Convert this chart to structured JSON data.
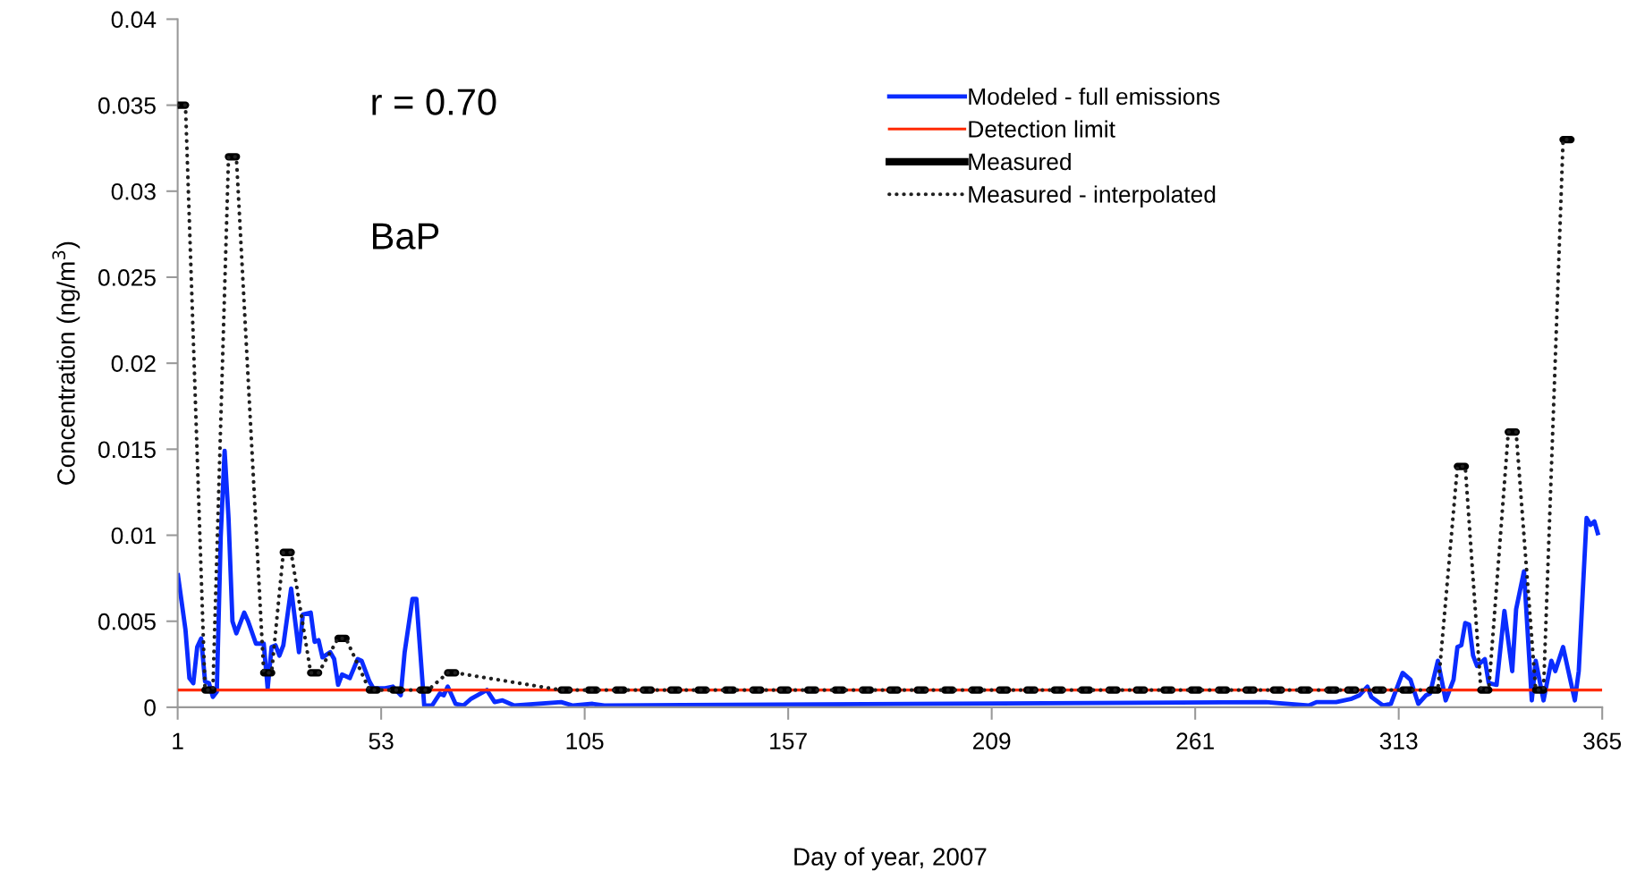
{
  "chart_data": {
    "type": "line",
    "xlabel": "Day of year, 2007",
    "ylabel": "Concentration (ng/m$^{3}$)",
    "xlim": [
      1,
      365
    ],
    "xticks": [
      1,
      53,
      105,
      157,
      209,
      261,
      313,
      365
    ],
    "ylim": [
      0,
      0.04
    ],
    "yticks": [
      0,
      0.005,
      0.01,
      0.015,
      0.02,
      0.025,
      0.03,
      0.035,
      0.04
    ],
    "grid": false,
    "legend": "top right",
    "annotations": [
      "r = 0.70",
      "BaP"
    ],
    "series": [
      {
        "name": "Modeled - full emissions",
        "color": "#0a2cff",
        "line_style": "solid",
        "x": [
          1,
          3,
          4,
          5,
          6,
          7,
          8,
          9,
          10,
          11,
          12,
          13,
          14,
          15,
          16,
          18,
          19,
          21,
          23,
          24,
          25,
          26,
          27,
          28,
          30,
          32,
          33,
          35,
          36,
          37,
          38,
          40,
          41,
          42,
          43,
          45,
          47,
          48,
          50,
          51,
          54,
          56,
          58,
          59,
          61,
          62,
          64,
          66,
          68,
          69,
          70,
          72,
          74,
          76,
          80,
          82,
          84,
          87,
          99,
          102,
          107,
          110,
          279,
          290,
          292,
          297,
          301,
          303,
          305,
          306,
          309,
          311,
          314,
          316,
          318,
          320,
          321,
          323,
          325,
          327,
          328,
          329,
          330,
          331,
          332,
          333,
          335,
          336,
          338,
          340,
          342,
          343,
          345,
          347,
          348,
          350,
          352,
          353,
          355,
          358,
          359,
          360,
          361,
          362,
          363,
          364
        ],
        "values": [
          0.0078,
          0.0045,
          0.0017,
          0.0014,
          0.0035,
          0.004,
          0.0015,
          0.0014,
          0.0006,
          0.0009,
          0.0099,
          0.0149,
          0.011,
          0.005,
          0.0043,
          0.0055,
          0.005,
          0.0037,
          0.0037,
          0.0011,
          0.0035,
          0.0036,
          0.003,
          0.0036,
          0.0069,
          0.0032,
          0.0054,
          0.0055,
          0.0038,
          0.0039,
          0.0029,
          0.0032,
          0.0028,
          0.0013,
          0.0019,
          0.0017,
          0.0028,
          0.0027,
          0.0015,
          0.0011,
          0.0011,
          0.0012,
          0.0007,
          0.0032,
          0.0063,
          0.0063,
          0.0001,
          0.0001,
          0.0008,
          0.0007,
          0.0012,
          0.0002,
          0.0001,
          0.0005,
          0.001,
          0.0003,
          0.0004,
          0.0001,
          0.0003,
          0.0001,
          0.0002,
          0.0001,
          0.0003,
          0.0001,
          0.0003,
          0.0003,
          0.0005,
          0.0007,
          0.0012,
          0.0006,
          0.0001,
          0.0002,
          0.002,
          0.0016,
          0.0002,
          0.0007,
          0.0008,
          0.0027,
          0.0004,
          0.0016,
          0.0035,
          0.0036,
          0.0049,
          0.0048,
          0.003,
          0.0024,
          0.0028,
          0.0014,
          0.0013,
          0.0056,
          0.0021,
          0.0057,
          0.0079,
          0.0004,
          0.0027,
          0.0004,
          0.0027,
          0.0021,
          0.0035,
          0.0004,
          0.0021,
          0.0066,
          0.011,
          0.0106,
          0.0108,
          0.01
        ]
      },
      {
        "name": "Detection limit",
        "color": "#ff2a00",
        "line_style": "solid",
        "x": [
          1,
          365
        ],
        "values": [
          0.001,
          0.001
        ]
      },
      {
        "name": "Measured",
        "color": "#000000",
        "line_style": "solid",
        "x": [
          1,
          3,
          4,
          8,
          10,
          11,
          14,
          16,
          17,
          23,
          25,
          26,
          28,
          30,
          31,
          35,
          37,
          38,
          42,
          44,
          45,
          50,
          52,
          53,
          56,
          58,
          59,
          63,
          65,
          66,
          70,
          72,
          73,
          99,
          101,
          102,
          106,
          108,
          109,
          113,
          115,
          116,
          120,
          122,
          123,
          127,
          129,
          130,
          134,
          136,
          137,
          141,
          143,
          144,
          148,
          150,
          151,
          155,
          157,
          158,
          162,
          164,
          165,
          169,
          171,
          172,
          176,
          178,
          179,
          183,
          185,
          186,
          190,
          192,
          193,
          197,
          199,
          200,
          204,
          206,
          207,
          211,
          213,
          214,
          218,
          220,
          221,
          225,
          227,
          228,
          232,
          234,
          235,
          239,
          241,
          242,
          246,
          248,
          249,
          253,
          255,
          256,
          260,
          262,
          263,
          267,
          269,
          270,
          274,
          276,
          277,
          281,
          283,
          284,
          288,
          290,
          291,
          295,
          297,
          298,
          300,
          302,
          303,
          307,
          309,
          310,
          314,
          316,
          317,
          321,
          323,
          324,
          328,
          330,
          331,
          334,
          336,
          337,
          341,
          343,
          344,
          348,
          350,
          351,
          355,
          357
        ],
        "values": [
          0.035,
          0.035,
          null,
          0.001,
          0.001,
          null,
          0.032,
          0.032,
          null,
          0.002,
          0.002,
          null,
          0.009,
          0.009,
          null,
          0.002,
          0.002,
          null,
          0.004,
          0.004,
          null,
          0.001,
          0.001,
          null,
          0.001,
          0.001,
          null,
          0.001,
          0.001,
          null,
          0.002,
          0.002,
          null,
          0.001,
          0.001,
          null,
          0.001,
          0.001,
          null,
          0.001,
          0.001,
          null,
          0.001,
          0.001,
          null,
          0.001,
          0.001,
          null,
          0.001,
          0.001,
          null,
          0.001,
          0.001,
          null,
          0.001,
          0.001,
          null,
          0.001,
          0.001,
          null,
          0.001,
          0.001,
          null,
          0.001,
          0.001,
          null,
          0.001,
          0.001,
          null,
          0.001,
          0.001,
          null,
          0.001,
          0.001,
          null,
          0.001,
          0.001,
          null,
          0.001,
          0.001,
          null,
          0.001,
          0.001,
          null,
          0.001,
          0.001,
          null,
          0.001,
          0.001,
          null,
          0.001,
          0.001,
          null,
          0.001,
          0.001,
          null,
          0.001,
          0.001,
          null,
          0.001,
          0.001,
          null,
          0.001,
          0.001,
          null,
          0.001,
          0.001,
          null,
          0.001,
          0.001,
          null,
          0.001,
          0.001,
          null,
          0.001,
          0.001,
          null,
          0.001,
          0.001,
          null,
          0.001,
          0.001,
          null,
          0.001,
          0.001,
          null,
          0.001,
          0.001,
          null,
          0.001,
          0.001,
          null,
          0.014,
          0.014,
          null,
          0.001,
          0.001,
          null,
          0.016,
          0.016,
          null,
          0.001,
          0.001,
          null,
          0.033,
          0.033
        ]
      },
      {
        "name": "Measured - interpolated",
        "color": "#202020",
        "line_style": "dotted",
        "x": [
          1,
          3,
          8,
          10,
          14,
          16,
          23,
          25,
          28,
          30,
          35,
          37,
          42,
          44,
          50,
          52,
          56,
          58,
          63,
          65,
          70,
          72,
          99,
          323,
          328,
          330,
          334,
          336,
          341,
          343,
          348,
          350,
          355,
          357
        ],
        "values": [
          0.035,
          0.035,
          0.001,
          0.001,
          0.032,
          0.032,
          0.002,
          0.002,
          0.009,
          0.009,
          0.002,
          0.002,
          0.004,
          0.004,
          0.001,
          0.001,
          0.001,
          0.001,
          0.001,
          0.001,
          0.002,
          0.002,
          0.001,
          0.001,
          0.014,
          0.014,
          0.001,
          0.001,
          0.016,
          0.016,
          0.001,
          0.001,
          0.033,
          0.033
        ]
      }
    ]
  }
}
